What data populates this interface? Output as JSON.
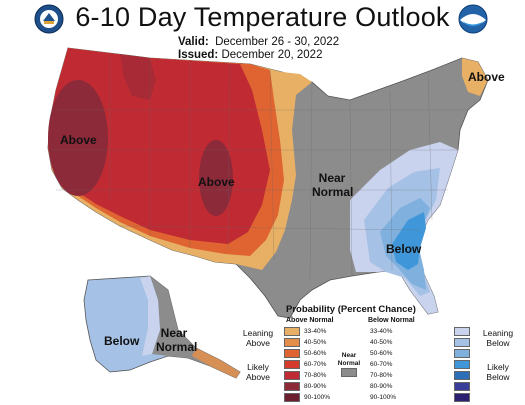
{
  "header": {
    "title": "6-10 Day Temperature Outlook",
    "valid_label": "Valid:",
    "valid_value": "December 26 - 30, 2022",
    "issued_label": "Issued:",
    "issued_value": "December 20, 2022",
    "left_logo": "doc-seal-icon",
    "right_logo": "noaa-logo-icon"
  },
  "map_labels": {
    "west_above": "Above",
    "central_above": "Above",
    "near_normal_1": "Near",
    "near_normal_2": "Normal",
    "southeast_below": "Below",
    "maine_above": "Above",
    "alaska_below": "Below",
    "alaska_near_1": "Near",
    "alaska_near_2": "Normal"
  },
  "legend": {
    "title": "Probability (Percent Chance)",
    "above_head": "Above Normal",
    "below_head": "Below Normal",
    "near_head_1": "Near",
    "near_head_2": "Normal",
    "leaning_above_1": "Leaning",
    "leaning_above_2": "Above",
    "likely_above_1": "Likely",
    "likely_above_2": "Above",
    "leaning_below_1": "Leaning",
    "leaning_below_2": "Below",
    "likely_below_1": "Likely",
    "likely_below_2": "Below",
    "above": [
      {
        "range": "33-40%",
        "color": "#e8b065"
      },
      {
        "range": "40-50%",
        "color": "#e38f4a"
      },
      {
        "range": "50-60%",
        "color": "#df6432"
      },
      {
        "range": "60-70%",
        "color": "#d53b2c"
      },
      {
        "range": "70-80%",
        "color": "#c02a33"
      },
      {
        "range": "80-90%",
        "color": "#8c2a3a"
      },
      {
        "range": "90-100%",
        "color": "#6a1e2e"
      }
    ],
    "below": [
      {
        "range": "33-40%",
        "color": "#c9d3ee"
      },
      {
        "range": "40-50%",
        "color": "#a5c1e6"
      },
      {
        "range": "50-60%",
        "color": "#7fb0de"
      },
      {
        "range": "60-70%",
        "color": "#3f97d9"
      },
      {
        "range": "70-80%",
        "color": "#2a6fb8"
      },
      {
        "range": "80-90%",
        "color": "#3a3e9a"
      },
      {
        "range": "90-100%",
        "color": "#2b1f70"
      }
    ],
    "near_color": "#8c8c8c"
  },
  "colors": {
    "near_normal": "#8c8c8c",
    "above_50_60": "#df6432",
    "above_33_40": "#e8b065",
    "above_70_80": "#c02a33",
    "above_80_90": "#8c2a3a",
    "below_33_40": "#c9d3ee",
    "below_40_50": "#a5c1e6",
    "below_50_60": "#7fb0de",
    "below_60_70": "#3f97d9"
  }
}
